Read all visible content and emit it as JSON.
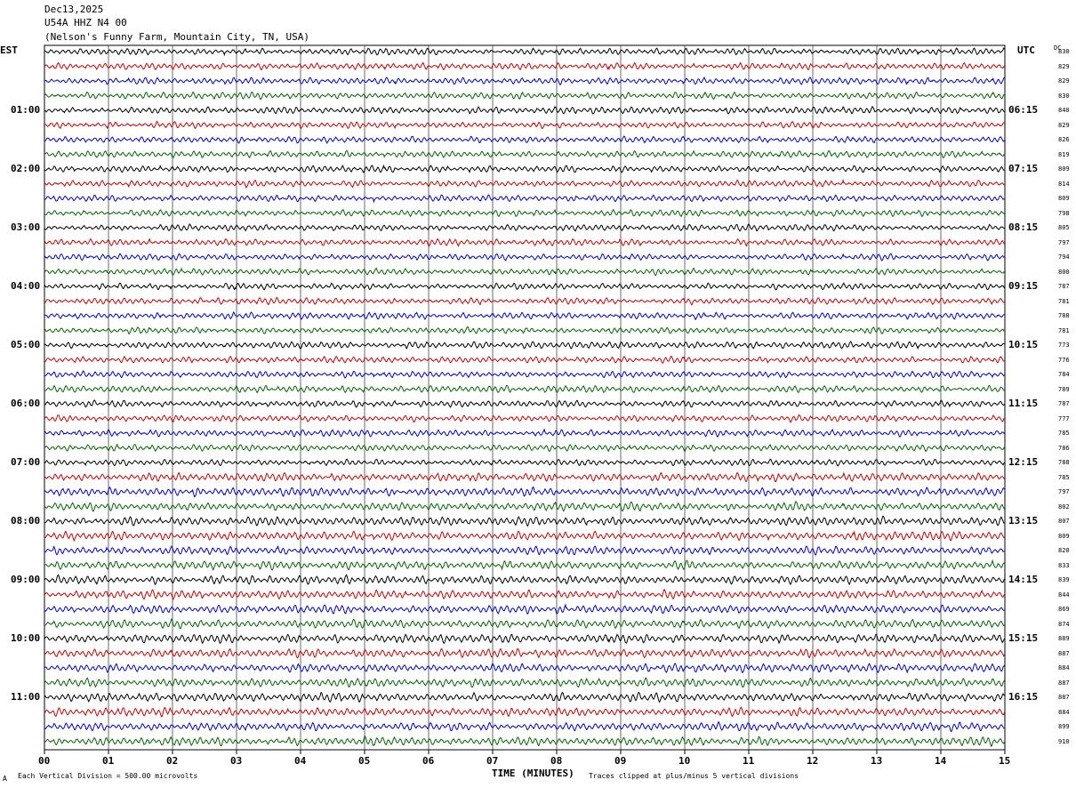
{
  "header": {
    "date": "Dec13,2025",
    "station": "U54A HHZ N4 00",
    "location": "(Nelson's Funny Farm, Mountain City, TN, USA)"
  },
  "left_tz": "EST",
  "right_tz": "UTC",
  "dc_label": "DC",
  "footer": {
    "scale": "Each Vertical Division =  500.00 microvolts",
    "xlabel": "TIME (MINUTES)",
    "clip_note": "Traces clipped at plus/minus 5 vertical divisions",
    "corner_mark": "A"
  },
  "colors": {
    "trace_cycle": [
      "#000000",
      "#cc0000",
      "#0000cc",
      "#006600"
    ],
    "grid": "#000000",
    "background": "#ffffff"
  },
  "chart_data": {
    "type": "line",
    "title": "U54A HHZ N4 00",
    "xlabel": "TIME (MINUTES)",
    "ylabel": "",
    "xlim": [
      0,
      15
    ],
    "x_ticks": [
      "00",
      "01",
      "02",
      "03",
      "04",
      "05",
      "06",
      "07",
      "08",
      "09",
      "10",
      "11",
      "12",
      "13",
      "14",
      "15"
    ],
    "rows_per_hour": 4,
    "row_interval_minutes": 15,
    "left_hour_labels": [
      "01:00",
      "02:00",
      "03:00",
      "04:00",
      "05:00",
      "06:00",
      "07:00",
      "08:00",
      "09:00",
      "10:00",
      "11:00"
    ],
    "right_hour_labels": [
      "06:15",
      "07:15",
      "08:15",
      "09:15",
      "10:15",
      "11:15",
      "12:15",
      "13:15",
      "14:15",
      "15:15",
      "16:15"
    ],
    "dc_offsets": [
      830,
      829,
      829,
      830,
      840,
      829,
      826,
      819,
      809,
      814,
      809,
      798,
      805,
      797,
      794,
      800,
      787,
      781,
      788,
      781,
      773,
      776,
      784,
      789,
      787,
      777,
      785,
      786,
      788,
      785,
      797,
      802,
      807,
      809,
      820,
      833,
      839,
      844,
      869,
      874,
      889,
      887,
      884,
      887,
      887,
      884,
      899,
      910
    ],
    "grid": true,
    "series": []
  }
}
